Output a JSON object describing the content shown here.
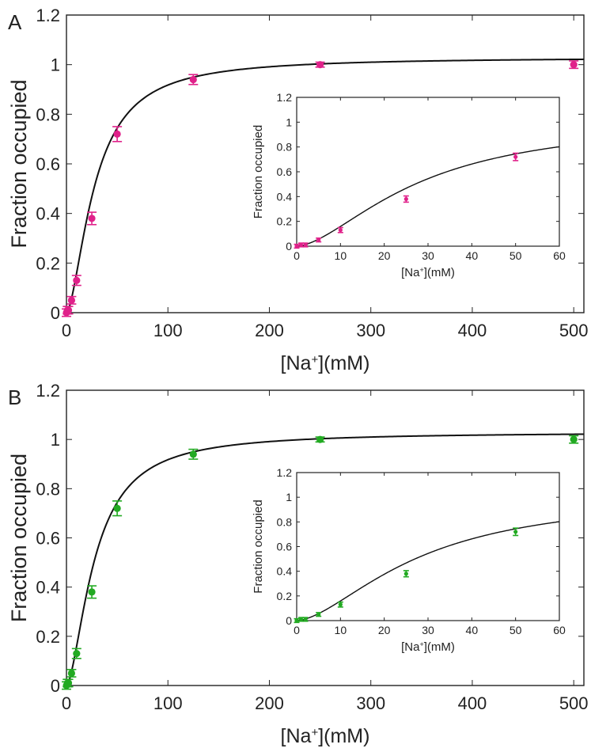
{
  "marker_colors": [
    "#e0218a",
    "#22aa22"
  ],
  "chart_data": [
    {
      "type": "scatter",
      "panel_label": "A",
      "color": "#e0218a",
      "xlabel": "[Na+](mM)",
      "ylabel": "Fraction occupied",
      "xlim": [
        0,
        510
      ],
      "ylim": [
        0,
        1.2
      ],
      "xticks": [
        "0",
        "100",
        "200",
        "300",
        "400",
        "500"
      ],
      "yticks": [
        "0",
        "0.2",
        "0.4",
        "0.6",
        "0.8",
        "1",
        "1.2"
      ],
      "points": [
        {
          "x": 0,
          "y": 0.0,
          "err": 0.015
        },
        {
          "x": 1,
          "y": 0.01,
          "err": 0.015
        },
        {
          "x": 2,
          "y": 0.01,
          "err": 0.015
        },
        {
          "x": 5,
          "y": 0.05,
          "err": 0.015
        },
        {
          "x": 10,
          "y": 0.13,
          "err": 0.02
        },
        {
          "x": 25,
          "y": 0.38,
          "err": 0.025
        },
        {
          "x": 50,
          "y": 0.72,
          "err": 0.03
        },
        {
          "x": 125,
          "y": 0.94,
          "err": 0.02
        },
        {
          "x": 250,
          "y": 1.0,
          "err": 0.01
        },
        {
          "x": 500,
          "y": 1.0,
          "err": 0.015
        }
      ],
      "inset": {
        "xlabel": "[Na+](mM)",
        "ylabel": "Fraction occupied",
        "xlim": [
          0,
          60
        ],
        "ylim": [
          0,
          1.2
        ],
        "xticks": [
          "0",
          "10",
          "20",
          "30",
          "40",
          "50",
          "60"
        ],
        "yticks": [
          "0",
          "0.2",
          "0.4",
          "0.6",
          "0.8",
          "1",
          "1.2"
        ]
      }
    },
    {
      "type": "scatter",
      "panel_label": "B",
      "color": "#22aa22",
      "xlabel": "[Na+](mM)",
      "ylabel": "Fraction occupied",
      "xlim": [
        0,
        510
      ],
      "ylim": [
        0,
        1.2
      ],
      "xticks": [
        "0",
        "100",
        "200",
        "300",
        "400",
        "500"
      ],
      "yticks": [
        "0",
        "0.2",
        "0.4",
        "0.6",
        "0.8",
        "1",
        "1.2"
      ],
      "points": [
        {
          "x": 0,
          "y": 0.0,
          "err": 0.015
        },
        {
          "x": 1,
          "y": 0.01,
          "err": 0.015
        },
        {
          "x": 2,
          "y": 0.01,
          "err": 0.015
        },
        {
          "x": 5,
          "y": 0.05,
          "err": 0.015
        },
        {
          "x": 10,
          "y": 0.13,
          "err": 0.02
        },
        {
          "x": 25,
          "y": 0.38,
          "err": 0.025
        },
        {
          "x": 50,
          "y": 0.72,
          "err": 0.03
        },
        {
          "x": 125,
          "y": 0.94,
          "err": 0.02
        },
        {
          "x": 250,
          "y": 1.0,
          "err": 0.01
        },
        {
          "x": 500,
          "y": 1.0,
          "err": 0.015
        }
      ],
      "inset": {
        "xlabel": "[Na+](mM)",
        "ylabel": "Fraction occupied",
        "xlim": [
          0,
          60
        ],
        "ylim": [
          0,
          1.2
        ],
        "xticks": [
          "0",
          "10",
          "20",
          "30",
          "40",
          "50",
          "60"
        ],
        "yticks": [
          "0",
          "0.2",
          "0.4",
          "0.6",
          "0.8",
          "1",
          "1.2"
        ]
      }
    }
  ]
}
